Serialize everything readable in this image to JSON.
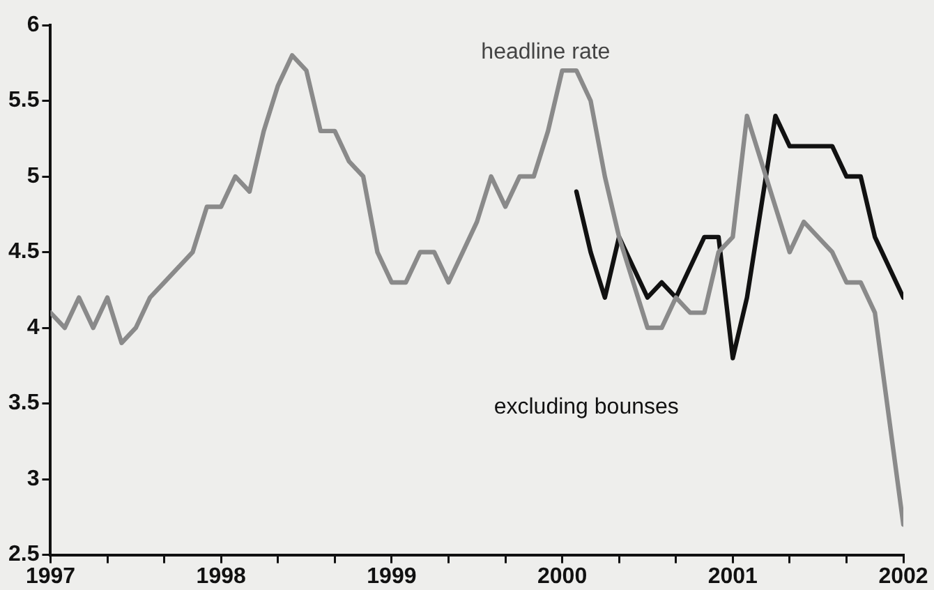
{
  "chart_data": {
    "type": "line",
    "xlim": [
      "1997-01",
      "2002-01"
    ],
    "xticks": [
      {
        "value": "1997-01",
        "label": "1997"
      },
      {
        "value": "1997-05",
        "label": null
      },
      {
        "value": "1997-09",
        "label": null
      },
      {
        "value": "1998-01",
        "label": "1998"
      },
      {
        "value": "1998-05",
        "label": null
      },
      {
        "value": "1998-09",
        "label": null
      },
      {
        "value": "1999-01",
        "label": "1999"
      },
      {
        "value": "1999-05",
        "label": null
      },
      {
        "value": "1999-09",
        "label": null
      },
      {
        "value": "2000-01",
        "label": "2000"
      },
      {
        "value": "2000-05",
        "label": null
      },
      {
        "value": "2000-09",
        "label": null
      },
      {
        "value": "2001-01",
        "label": "2001"
      },
      {
        "value": "2001-05",
        "label": null
      },
      {
        "value": "2001-09",
        "label": null
      },
      {
        "value": "2002-01",
        "label": "2002"
      }
    ],
    "ylim": [
      2.5,
      6
    ],
    "yticks": [
      2.5,
      3,
      3.5,
      4,
      4.5,
      5,
      5.5,
      6
    ],
    "grid": false,
    "legend": false,
    "marker": "none",
    "line_style": "solid",
    "series": [
      {
        "name": "headline rate",
        "color": "#8a8a8a",
        "x": [
          "1997-01",
          "1997-02",
          "1997-03",
          "1997-04",
          "1997-05",
          "1997-06",
          "1997-07",
          "1997-08",
          "1997-09",
          "1997-10",
          "1997-11",
          "1997-12",
          "1998-01",
          "1998-02",
          "1998-03",
          "1998-04",
          "1998-05",
          "1998-06",
          "1998-07",
          "1998-08",
          "1998-09",
          "1998-10",
          "1998-11",
          "1998-12",
          "1999-01",
          "1999-02",
          "1999-03",
          "1999-04",
          "1999-05",
          "1999-06",
          "1999-07",
          "1999-08",
          "1999-09",
          "1999-10",
          "1999-11",
          "1999-12",
          "2000-01",
          "2000-02",
          "2000-03",
          "2000-04",
          "2000-05",
          "2000-06",
          "2000-07",
          "2000-08",
          "2000-09",
          "2000-10",
          "2000-11",
          "2000-12",
          "2001-01",
          "2001-02",
          "2001-03",
          "2001-04",
          "2001-05",
          "2001-06",
          "2001-07",
          "2001-08",
          "2001-09",
          "2001-10",
          "2001-11",
          "2001-12",
          "2002-01"
        ],
        "values": [
          4.1,
          4.0,
          4.2,
          4.0,
          4.2,
          3.9,
          4.0,
          4.2,
          4.3,
          4.4,
          4.5,
          4.8,
          4.8,
          5.0,
          4.9,
          5.3,
          5.6,
          5.8,
          5.7,
          5.3,
          5.3,
          5.1,
          5.0,
          4.5,
          4.3,
          4.3,
          4.5,
          4.5,
          4.3,
          4.5,
          4.7,
          5.0,
          4.8,
          5.0,
          5.0,
          5.3,
          5.7,
          5.7,
          5.5,
          5.0,
          4.6,
          4.3,
          4.0,
          4.0,
          4.2,
          4.1,
          4.1,
          4.5,
          4.6,
          5.4,
          5.1,
          4.8,
          4.5,
          4.7,
          4.6,
          4.5,
          4.3,
          4.3,
          4.1,
          3.4,
          2.7
        ]
      },
      {
        "name": "excluding bounses",
        "color": "#111111",
        "x": [
          "2000-02",
          "2000-03",
          "2000-04",
          "2000-05",
          "2000-06",
          "2000-07",
          "2000-08",
          "2000-09",
          "2000-10",
          "2000-11",
          "2000-12",
          "2001-01",
          "2001-02",
          "2001-03",
          "2001-04",
          "2001-05",
          "2001-06",
          "2001-07",
          "2001-08",
          "2001-09",
          "2001-10",
          "2001-11",
          "2001-12",
          "2002-01"
        ],
        "values": [
          4.9,
          4.5,
          4.2,
          4.6,
          4.4,
          4.2,
          4.3,
          4.2,
          4.4,
          4.6,
          4.6,
          3.8,
          4.2,
          4.8,
          5.4,
          5.2,
          5.2,
          5.2,
          5.2,
          5.0,
          5.0,
          4.6,
          4.4,
          4.2
        ]
      }
    ]
  }
}
